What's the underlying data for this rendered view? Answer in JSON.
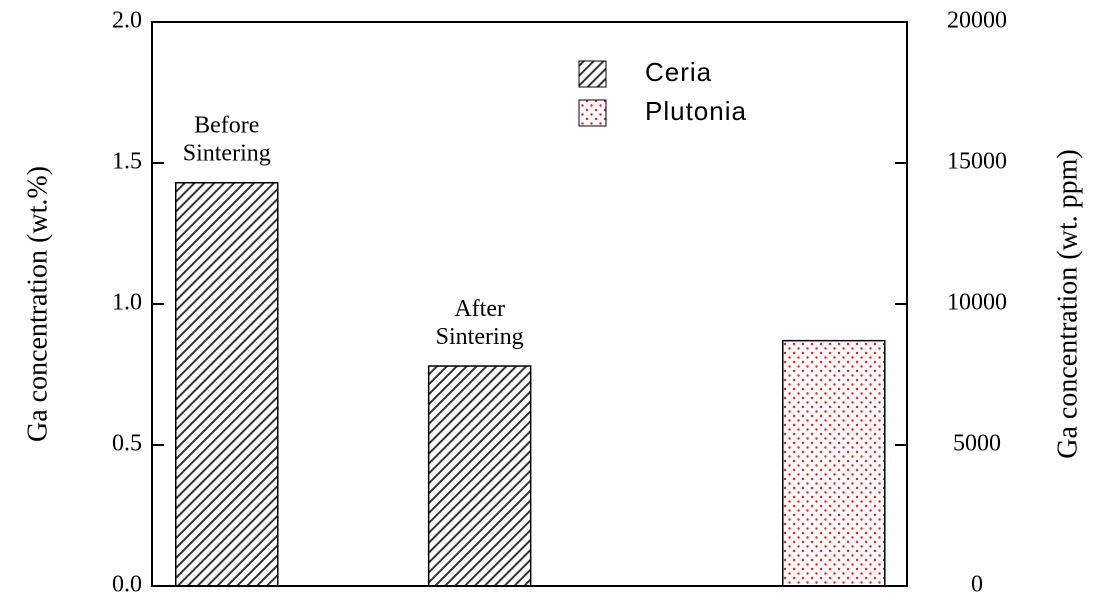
{
  "chart_data": {
    "type": "bar",
    "categories": [
      "Before Sintering",
      "After Sintering",
      null
    ],
    "series": [
      {
        "name": "Ceria",
        "color": "#333333",
        "values": [
          1.43,
          0.78,
          null
        ]
      },
      {
        "name": "Plutonia",
        "color": "#e02020",
        "values": [
          null,
          null,
          0.87
        ]
      }
    ],
    "y_label": "Ga concentration (wt.%)",
    "y2_label": "Ga concentration (wt. ppm)",
    "ylim": [
      0,
      2.0
    ],
    "yticks": [
      {
        "value": 0,
        "label": "0.0"
      },
      0.5,
      {
        "value": 1,
        "label": "1.0"
      },
      1.5,
      {
        "value": 2,
        "label": "2.0"
      }
    ],
    "y2lim": [
      0,
      20000
    ],
    "y2ticks": [
      0,
      5000,
      10000,
      15000,
      20000
    ],
    "legend": "upper right"
  }
}
